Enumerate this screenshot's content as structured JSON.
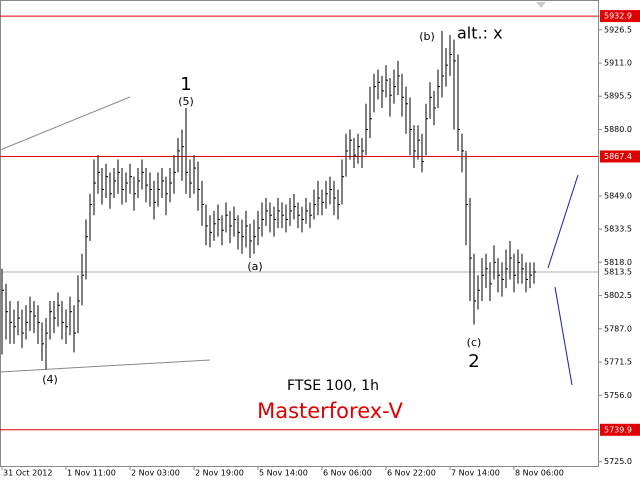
{
  "chart_data": {
    "type": "ohlc",
    "color": "#000000",
    "categories": [
      "31 Oct 2012",
      null,
      null,
      null,
      null,
      null,
      null,
      null,
      null,
      null,
      null,
      null,
      null,
      null,
      null,
      null,
      "1 Nov 11:00",
      null,
      null,
      null,
      null,
      null,
      null,
      null,
      null,
      null,
      null,
      null,
      null,
      null,
      null,
      null,
      "2 Nov 03:00",
      null,
      null,
      null,
      null,
      null,
      null,
      null,
      null,
      null,
      null,
      null,
      null,
      null,
      null,
      null,
      "2 Nov 19:00",
      null,
      null,
      null,
      null,
      null,
      null,
      null,
      null,
      null,
      null,
      null,
      null,
      null,
      null,
      null,
      "5 Nov 14:00",
      null,
      null,
      null,
      null,
      null,
      null,
      null,
      null,
      null,
      null,
      null,
      null,
      null,
      null,
      null,
      "6 Nov 06:00",
      null,
      null,
      null,
      null,
      null,
      null,
      null,
      null,
      null,
      null,
      null,
      null,
      null,
      null,
      null,
      "6 Nov 22:00",
      null,
      null,
      null,
      null,
      null,
      null,
      null,
      null,
      null,
      null,
      null,
      null,
      null,
      null,
      null,
      "7 Nov 14:00",
      null,
      null,
      null,
      null,
      null,
      null,
      null,
      null,
      null,
      null,
      null,
      null,
      null,
      null,
      null,
      "8 Nov 06:00",
      null,
      null,
      null,
      null,
      null
    ],
    "high": [
      5815,
      5808,
      5800,
      5796,
      5800,
      5796,
      5798,
      5802,
      5800,
      5798,
      5790,
      5792,
      5800,
      5800,
      5804,
      5800,
      5796,
      5802,
      5798,
      5812,
      5822,
      5838,
      5850,
      5866,
      5868,
      5862,
      5864,
      5860,
      5862,
      5866,
      5862,
      5860,
      5864,
      5858,
      5862,
      5866,
      5862,
      5860,
      5856,
      5860,
      5862,
      5858,
      5862,
      5868,
      5876,
      5880,
      5890,
      5866,
      5868,
      5865,
      5856,
      5845,
      5840,
      5842,
      5845,
      5840,
      5846,
      5842,
      5844,
      5840,
      5838,
      5842,
      5836,
      5838,
      5842,
      5846,
      5848,
      5846,
      5844,
      5848,
      5846,
      5845,
      5848,
      5850,
      5846,
      5844,
      5848,
      5846,
      5852,
      5856,
      5852,
      5856,
      5858,
      5856,
      5852,
      5866,
      5878,
      5880,
      5876,
      5878,
      5876,
      5892,
      5900,
      5906,
      5908,
      5905,
      5910,
      5904,
      5908,
      5912,
      5906,
      5900,
      5895,
      5882,
      5882,
      5878,
      5892,
      5902,
      5898,
      5908,
      5926,
      5918,
      5924,
      5922,
      5915,
      5878,
      5870,
      5848,
      5822,
      5812,
      5820,
      5822,
      5818,
      5826,
      5820,
      5818,
      5824,
      5828,
      5822,
      5824,
      5822,
      5818,
      5818,
      5818
    ],
    "low": [
      5775,
      5782,
      5780,
      5780,
      5784,
      5778,
      5782,
      5786,
      5785,
      5780,
      5772,
      5768,
      5782,
      5785,
      5788,
      5782,
      5780,
      5784,
      5776,
      5785,
      5798,
      5810,
      5828,
      5840,
      5850,
      5845,
      5848,
      5843,
      5848,
      5850,
      5845,
      5846,
      5850,
      5842,
      5848,
      5852,
      5846,
      5844,
      5838,
      5844,
      5848,
      5840,
      5846,
      5850,
      5860,
      5856,
      5850,
      5848,
      5850,
      5842,
      5835,
      5826,
      5825,
      5828,
      5830,
      5826,
      5832,
      5827,
      5830,
      5824,
      5822,
      5825,
      5820,
      5822,
      5826,
      5830,
      5835,
      5832,
      5830,
      5834,
      5834,
      5832,
      5835,
      5838,
      5834,
      5832,
      5836,
      5834,
      5838,
      5840,
      5840,
      5843,
      5845,
      5840,
      5838,
      5845,
      5858,
      5866,
      5862,
      5864,
      5862,
      5868,
      5876,
      5888,
      5894,
      5890,
      5895,
      5886,
      5892,
      5896,
      5886,
      5878,
      5868,
      5862,
      5866,
      5860,
      5868,
      5885,
      5882,
      5890,
      5895,
      5900,
      5905,
      5880,
      5870,
      5860,
      5826,
      5800,
      5789,
      5796,
      5800,
      5806,
      5800,
      5810,
      5804,
      5802,
      5806,
      5810,
      5804,
      5808,
      5808,
      5804,
      5806,
      5808
    ],
    "close": [
      5805,
      5795,
      5790,
      5788,
      5792,
      5785,
      5790,
      5795,
      5793,
      5790,
      5780,
      5785,
      5795,
      5792,
      5798,
      5790,
      5788,
      5795,
      5785,
      5800,
      5812,
      5830,
      5845,
      5855,
      5860,
      5852,
      5858,
      5850,
      5856,
      5860,
      5852,
      5855,
      5858,
      5850,
      5856,
      5860,
      5854,
      5852,
      5846,
      5852,
      5856,
      5850,
      5855,
      5860,
      5870,
      5872,
      5860,
      5855,
      5862,
      5852,
      5845,
      5835,
      5832,
      5836,
      5838,
      5833,
      5840,
      5835,
      5838,
      5832,
      5830,
      5835,
      5828,
      5830,
      5834,
      5838,
      5842,
      5840,
      5838,
      5842,
      5840,
      5838,
      5842,
      5844,
      5840,
      5838,
      5842,
      5840,
      5845,
      5848,
      5846,
      5850,
      5852,
      5848,
      5845,
      5858,
      5870,
      5875,
      5868,
      5872,
      5870,
      5880,
      5885,
      5900,
      5902,
      5898,
      5903,
      5896,
      5900,
      5905,
      5895,
      5892,
      5880,
      5870,
      5875,
      5865,
      5885,
      5895,
      5890,
      5900,
      5905,
      5910,
      5915,
      5912,
      5880,
      5870,
      5845,
      5820,
      5800,
      5805,
      5812,
      5815,
      5808,
      5818,
      5812,
      5810,
      5815,
      5820,
      5812,
      5818,
      5815,
      5810,
      5812,
      5813.5
    ],
    "ylim": [
      5723,
      5940.4
    ],
    "yticks": [
      5926.5,
      {
        "value": 5911,
        "label": "5911.0"
      },
      5895.5,
      {
        "value": 5880,
        "label": "5880.0"
      },
      {
        "value": 5849,
        "label": "5849.0"
      },
      5833.5,
      {
        "value": 5818,
        "label": "5818.0"
      },
      5802.5,
      {
        "value": 5787,
        "label": "5787.0"
      },
      5771.5,
      {
        "value": 5756,
        "label": "5756.0"
      },
      {
        "value": 5725,
        "label": "5725.0"
      }
    ],
    "levels": [
      5932.9,
      5867.4,
      5739.9
    ],
    "level_color": "#e00000",
    "last_color": "#b0b0b0",
    "annotations": [
      "1",
      "(5)",
      "(a)",
      "(b)",
      "alt.: x",
      "(4)",
      "(c)",
      "2",
      "FTSE 100, 1h",
      "Masterforex-V"
    ]
  }
}
